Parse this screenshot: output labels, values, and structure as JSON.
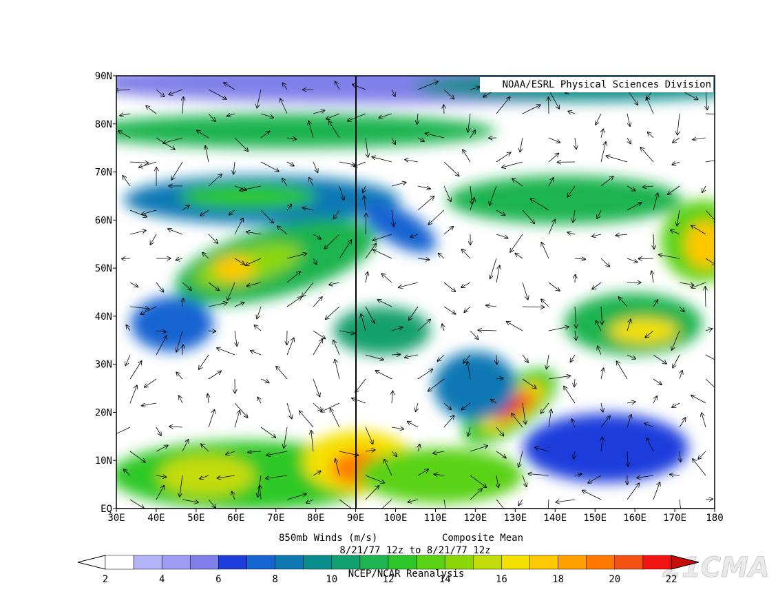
{
  "header": {
    "title": "NOAA/ESRL Physical Sciences Division"
  },
  "axes": {
    "lat_labels": [
      "90N",
      "80N",
      "70N",
      "60N",
      "50N",
      "40N",
      "30N",
      "20N",
      "10N",
      "EQ"
    ],
    "lon_labels": [
      "30E",
      "40E",
      "50E",
      "60E",
      "70E",
      "80E",
      "90E",
      "100E",
      "110E",
      "120E",
      "130E",
      "140E",
      "150E",
      "160E",
      "170E",
      "180"
    ]
  },
  "caption": {
    "line1_left": "850mb Winds (m/s)",
    "line1_right": "Composite Mean",
    "line2": "8/21/77 12z  to 8/21/77 12z",
    "line3": "NCEP/NCAR Reanalysis"
  },
  "colorbar": {
    "labels": [
      "2",
      "4",
      "6",
      "8",
      "10",
      "12",
      "14",
      "16",
      "18",
      "20",
      "22"
    ],
    "colors": [
      "#ffffff",
      "#b4b4fa",
      "#9c9cf2",
      "#8080ea",
      "#1e3cdc",
      "#1464d2",
      "#0f78b4",
      "#0a8c8c",
      "#12a070",
      "#1eb450",
      "#2dc828",
      "#5ad214",
      "#8cd70a",
      "#c3dc0a",
      "#f5e100",
      "#ffc800",
      "#ffa000",
      "#ff7800",
      "#f55014",
      "#f01414"
    ],
    "over_color": "#c80a0a"
  },
  "watermark": "21CMA"
}
